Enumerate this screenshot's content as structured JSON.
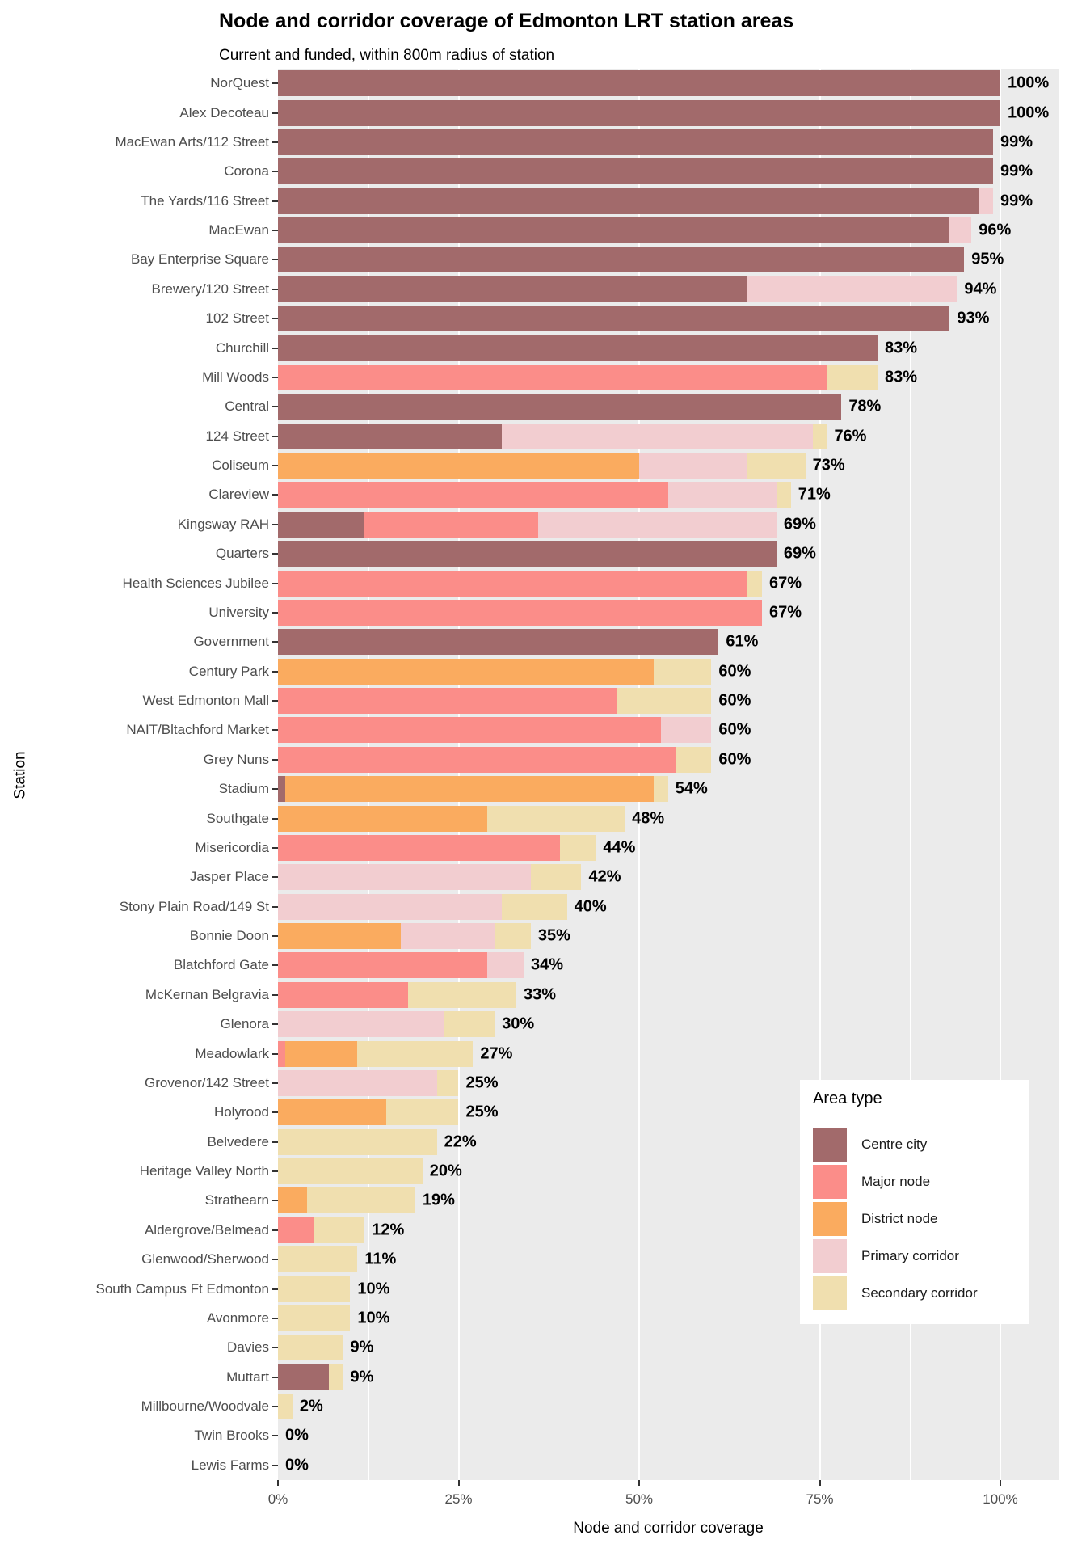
{
  "title": "Node and corridor coverage of Edmonton LRT station areas",
  "subtitle": "Current and funded, within 800m radius of station",
  "x_axis": {
    "label": "Node and corridor coverage",
    "ticks": [
      "0%",
      "25%",
      "50%",
      "75%",
      "100%"
    ],
    "tick_values": [
      0,
      25,
      50,
      75,
      100
    ]
  },
  "y_axis": {
    "label": "Station"
  },
  "legend": {
    "title": "Area type",
    "items": [
      {
        "label": "Centre city",
        "color": "#A26A6B"
      },
      {
        "label": "Major node",
        "color": "#FB8D89"
      },
      {
        "label": "District node",
        "color": "#FAAB5F"
      },
      {
        "label": "Primary corridor",
        "color": "#F2CDD0"
      },
      {
        "label": "Secondary corridor",
        "color": "#F0DFAF"
      }
    ]
  },
  "colors": {
    "panel_background": "#EBEBEB",
    "gridline": "#FFFFFF",
    "axis_text": "#4D4D4D",
    "tick_mark": "#333333",
    "value_label": "#000000"
  },
  "chart_data": {
    "type": "bar",
    "orientation": "horizontal",
    "stacked": true,
    "title": "Node and corridor coverage of Edmonton LRT station areas",
    "subtitle": "Current and funded, within 800m radius of station",
    "xlabel": "Node and corridor coverage",
    "ylabel": "Station",
    "xlim": [
      0,
      108
    ],
    "xticks": [
      0,
      25,
      50,
      75,
      100
    ],
    "grid": true,
    "legend_position": "inside-bottom-right",
    "categories": [
      "NorQuest",
      "Alex Decoteau",
      "MacEwan Arts/112 Street",
      "Corona",
      "The Yards/116 Street",
      "MacEwan",
      "Bay Enterprise Square",
      "Brewery/120 Street",
      "102 Street",
      "Churchill",
      "Mill Woods",
      "Central",
      "124 Street",
      "Coliseum",
      "Clareview",
      "Kingsway RAH",
      "Quarters",
      "Health Sciences Jubilee",
      "University",
      "Government",
      "Century Park",
      "West Edmonton Mall",
      "NAIT/Bltachford Market",
      "Grey Nuns",
      "Stadium",
      "Southgate",
      "Misericordia",
      "Jasper Place",
      "Stony Plain Road/149 St",
      "Bonnie Doon",
      "Blatchford Gate",
      "McKernan Belgravia",
      "Glenora",
      "Meadowlark",
      "Grovenor/142 Street",
      "Holyrood",
      "Belvedere",
      "Heritage Valley North",
      "Strathearn",
      "Aldergrove/Belmead",
      "Glenwood/Sherwood",
      "South Campus Ft Edmonton",
      "Avonmore",
      "Davies",
      "Muttart",
      "Millbourne/Woodvale",
      "Twin Brooks",
      "Lewis Farms"
    ],
    "series": [
      {
        "name": "Centre city",
        "color": "#A26A6B",
        "values": [
          100,
          100,
          99,
          99,
          97,
          93,
          95,
          65,
          93,
          83,
          0,
          78,
          31,
          0,
          0,
          12,
          69,
          0,
          0,
          61,
          0,
          0,
          0,
          0,
          1,
          0,
          0,
          0,
          0,
          0,
          0,
          0,
          0,
          0,
          0,
          0,
          0,
          0,
          0,
          0,
          0,
          0,
          0,
          0,
          7,
          0,
          0,
          0
        ]
      },
      {
        "name": "Major node",
        "color": "#FB8D89",
        "values": [
          0,
          0,
          0,
          0,
          0,
          0,
          0,
          0,
          0,
          0,
          76,
          0,
          0,
          0,
          54,
          24,
          0,
          65,
          67,
          0,
          0,
          47,
          53,
          55,
          0,
          0,
          39,
          0,
          0,
          0,
          29,
          18,
          0,
          1,
          0,
          0,
          0,
          0,
          0,
          5,
          0,
          0,
          0,
          0,
          0,
          0,
          0,
          0
        ]
      },
      {
        "name": "District node",
        "color": "#FAAB5F",
        "values": [
          0,
          0,
          0,
          0,
          0,
          0,
          0,
          0,
          0,
          0,
          0,
          0,
          0,
          50,
          0,
          0,
          0,
          0,
          0,
          0,
          52,
          0,
          0,
          0,
          51,
          29,
          0,
          0,
          0,
          17,
          0,
          0,
          0,
          10,
          0,
          15,
          0,
          0,
          4,
          0,
          0,
          0,
          0,
          0,
          0,
          0,
          0,
          0
        ]
      },
      {
        "name": "Primary corridor",
        "color": "#F2CDD0",
        "values": [
          0,
          0,
          0,
          0,
          2,
          3,
          0,
          29,
          0,
          0,
          0,
          0,
          43,
          15,
          15,
          33,
          0,
          0,
          0,
          0,
          0,
          0,
          7,
          0,
          0,
          0,
          0,
          35,
          31,
          13,
          5,
          0,
          23,
          0,
          22,
          0,
          0,
          0,
          0,
          0,
          0,
          0,
          0,
          0,
          0,
          0,
          0,
          0
        ]
      },
      {
        "name": "Secondary corridor",
        "color": "#F0DFAF",
        "values": [
          0,
          0,
          0,
          0,
          0,
          0,
          0,
          0,
          0,
          0,
          7,
          0,
          2,
          8,
          2,
          0,
          0,
          2,
          0,
          0,
          8,
          13,
          0,
          5,
          2,
          19,
          5,
          7,
          9,
          5,
          0,
          15,
          7,
          16,
          3,
          10,
          22,
          20,
          15,
          7,
          11,
          10,
          10,
          9,
          2,
          2,
          0,
          0
        ]
      }
    ],
    "totals_labels": [
      "100%",
      "100%",
      "99%",
      "99%",
      "99%",
      "96%",
      "95%",
      "94%",
      "93%",
      "83%",
      "83%",
      "78%",
      "76%",
      "73%",
      "71%",
      "69%",
      "69%",
      "67%",
      "67%",
      "61%",
      "60%",
      "60%",
      "60%",
      "60%",
      "54%",
      "48%",
      "44%",
      "42%",
      "40%",
      "35%",
      "34%",
      "33%",
      "30%",
      "27%",
      "25%",
      "25%",
      "22%",
      "20%",
      "19%",
      "12%",
      "11%",
      "10%",
      "10%",
      "9%",
      "9%",
      "2%",
      "0%",
      "0%"
    ]
  }
}
